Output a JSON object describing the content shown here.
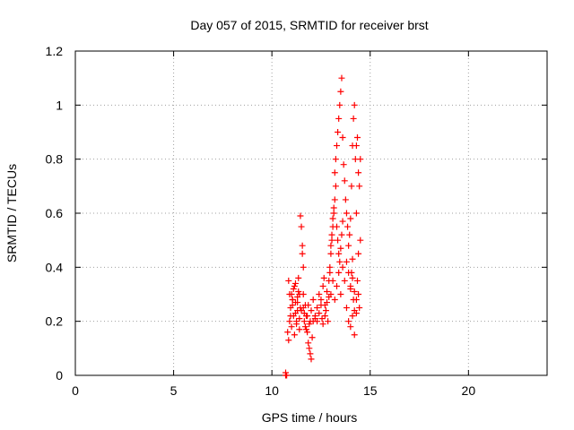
{
  "chart_data": {
    "type": "scatter",
    "title": "Day 057 of 2015, SRMTID for receiver brst",
    "xlabel": "GPS time / hours",
    "ylabel": "SRMTID / TECUs",
    "xlim": [
      0,
      24
    ],
    "ylim": [
      0,
      1.2
    ],
    "grid": true,
    "x_ticks": [
      0,
      5,
      10,
      15,
      20
    ],
    "x_tick_labels": [
      "0",
      "5",
      "10",
      "15",
      "20"
    ],
    "y_ticks": [
      0,
      0.2,
      0.4,
      0.6,
      0.8,
      1.0,
      1.2
    ],
    "y_tick_labels": [
      "0",
      "0.2",
      "0.4",
      "0.6",
      "0.8",
      "1",
      "1.2"
    ],
    "marker": "+",
    "colors": {
      "series": "#ff0000",
      "grid": "#a0a0a0",
      "axis": "#000000"
    },
    "series": [
      {
        "name": "SRMTID",
        "x": [
          10.7,
          10.7,
          10.75,
          10.85,
          10.9,
          10.95,
          11.0,
          11.05,
          11.1,
          11.15,
          11.2,
          11.25,
          11.3,
          11.35,
          11.4,
          10.85,
          10.9,
          11.0,
          11.05,
          11.1,
          11.15,
          11.2,
          11.3,
          11.35,
          11.4,
          11.45,
          10.8,
          10.95,
          11.05,
          11.2,
          11.25,
          11.3,
          11.4,
          11.5,
          11.6,
          11.65,
          11.7,
          11.75,
          11.8,
          11.85,
          11.9,
          11.95,
          12.0,
          12.05,
          12.1,
          11.6,
          11.7,
          11.8,
          11.9,
          12.0,
          12.1,
          12.2,
          11.65,
          11.75,
          11.85,
          11.95,
          11.45,
          11.5,
          11.55,
          11.55,
          11.6,
          12.2,
          12.3,
          12.4,
          12.5,
          12.55,
          12.6,
          12.65,
          12.7,
          12.75,
          12.8,
          12.85,
          12.9,
          12.3,
          12.4,
          12.5,
          12.6,
          12.7,
          12.8,
          12.9,
          12.95,
          13.0,
          13.05,
          13.1,
          13.15,
          13.2,
          13.25,
          12.95,
          13.0,
          13.05,
          13.1,
          13.15,
          13.2,
          13.25,
          13.3,
          13.35,
          13.4,
          13.45,
          13.5,
          13.55,
          13.6,
          13.65,
          13.7,
          13.3,
          13.35,
          13.4,
          13.45,
          13.5,
          13.55,
          13.6,
          13.0,
          13.1,
          13.2,
          13.3,
          13.4,
          13.5,
          13.75,
          13.8,
          13.85,
          13.9,
          13.95,
          14.0,
          14.05,
          14.1,
          14.15,
          14.2,
          14.25,
          14.0,
          14.05,
          14.1,
          14.15,
          14.2,
          14.3,
          14.35,
          14.4,
          14.45,
          14.5,
          14.3,
          14.4,
          14.5,
          14.35,
          14.45,
          13.8,
          13.9,
          14.0,
          14.1,
          14.2,
          14.3,
          13.6,
          13.7,
          13.8,
          13.9,
          14.0,
          14.1,
          14.2,
          14.3,
          14.4
        ],
        "y": [
          0.0,
          0.01,
          0.0,
          0.13,
          0.2,
          0.25,
          0.3,
          0.28,
          0.22,
          0.33,
          0.27,
          0.19,
          0.24,
          0.31,
          0.21,
          0.35,
          0.3,
          0.18,
          0.26,
          0.32,
          0.15,
          0.23,
          0.29,
          0.36,
          0.17,
          0.25,
          0.16,
          0.22,
          0.28,
          0.34,
          0.2,
          0.27,
          0.3,
          0.24,
          0.25,
          0.2,
          0.18,
          0.22,
          0.16,
          0.12,
          0.1,
          0.08,
          0.06,
          0.14,
          0.2,
          0.3,
          0.26,
          0.22,
          0.19,
          0.24,
          0.28,
          0.21,
          0.23,
          0.17,
          0.26,
          0.2,
          0.59,
          0.55,
          0.48,
          0.45,
          0.4,
          0.22,
          0.25,
          0.3,
          0.28,
          0.21,
          0.33,
          0.36,
          0.26,
          0.24,
          0.31,
          0.2,
          0.29,
          0.2,
          0.23,
          0.26,
          0.19,
          0.22,
          0.27,
          0.35,
          0.4,
          0.45,
          0.5,
          0.55,
          0.6,
          0.65,
          0.7,
          0.38,
          0.48,
          0.52,
          0.58,
          0.62,
          0.75,
          0.8,
          0.85,
          0.9,
          0.95,
          1.0,
          1.05,
          1.1,
          0.88,
          0.78,
          0.72,
          0.55,
          0.5,
          0.45,
          0.42,
          0.47,
          0.52,
          0.57,
          0.3,
          0.35,
          0.28,
          0.33,
          0.38,
          0.3,
          0.65,
          0.6,
          0.55,
          0.48,
          0.52,
          0.58,
          0.7,
          0.85,
          0.95,
          1.0,
          0.8,
          0.32,
          0.38,
          0.43,
          0.28,
          0.24,
          0.85,
          0.88,
          0.75,
          0.7,
          0.8,
          0.6,
          0.45,
          0.5,
          0.35,
          0.25,
          0.25,
          0.2,
          0.18,
          0.22,
          0.15,
          0.23,
          0.4,
          0.35,
          0.42,
          0.38,
          0.33,
          0.36,
          0.31,
          0.28,
          0.3
        ]
      }
    ]
  }
}
